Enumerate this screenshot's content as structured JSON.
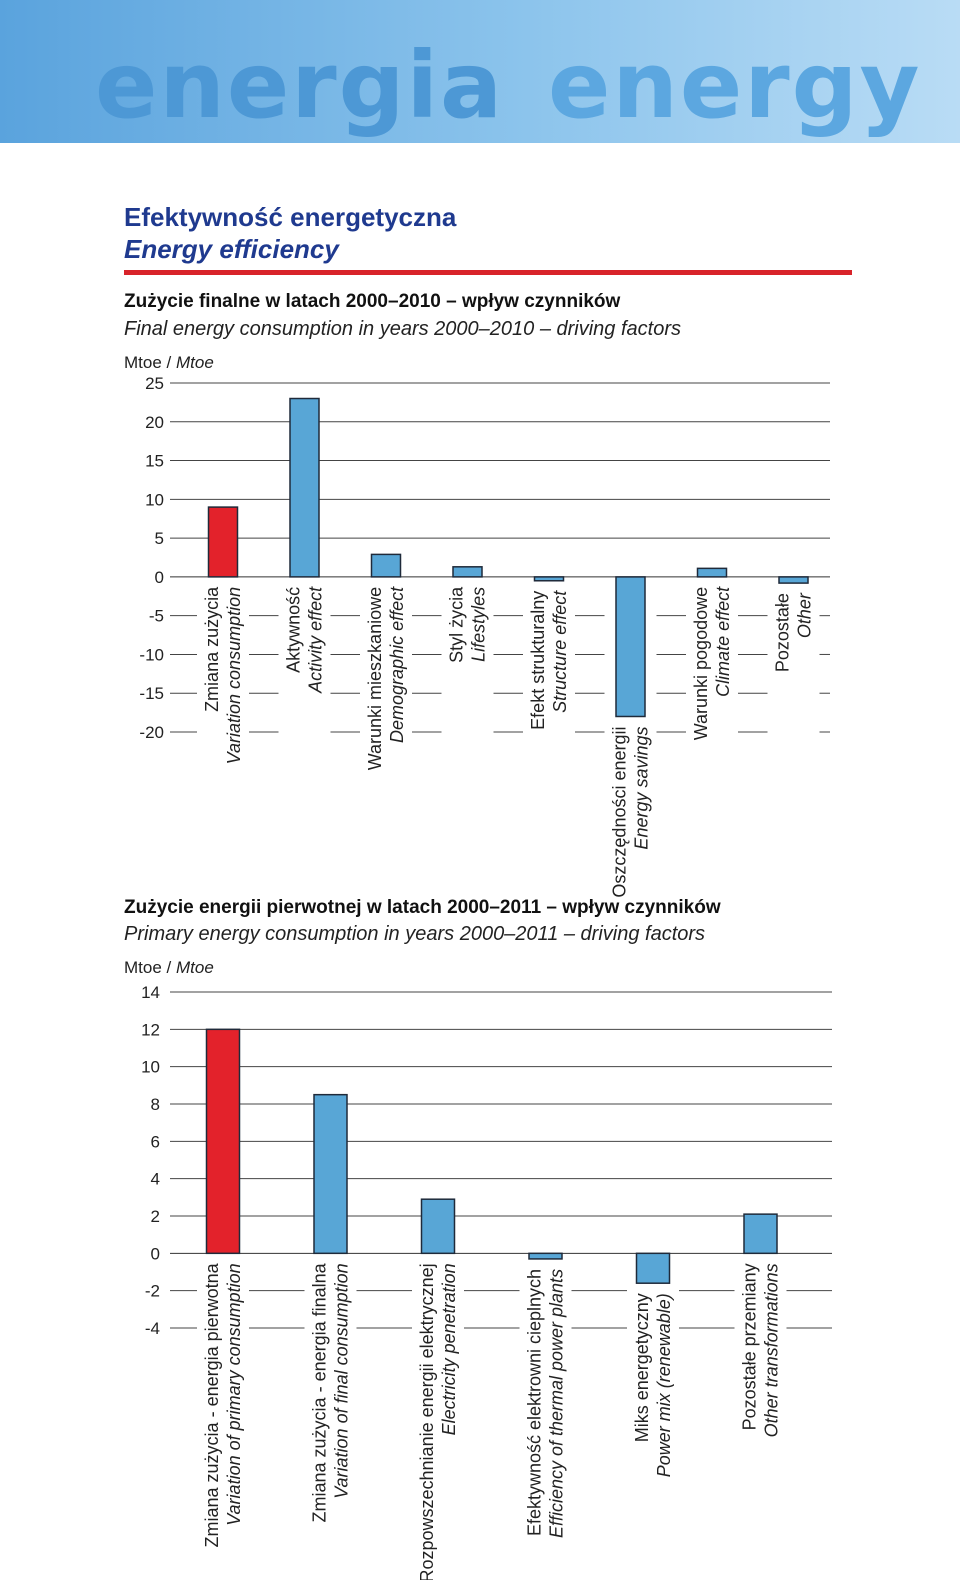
{
  "banner": {
    "word_pl": "energia",
    "word_en": "energy"
  },
  "section": {
    "title_pl": "Efektywność energetyczna",
    "title_en": "Energy efficiency"
  },
  "chart_data": [
    {
      "type": "bar",
      "title_pl": "Zużycie finalne w latach 2000–2010 – wpływ czynników",
      "title_en": "Final energy consumption in years 2000–2010 – driving factors",
      "unit_pl": "Mtoe /",
      "unit_en": "Mtoe",
      "ylim": [
        -20,
        25
      ],
      "yticks": [
        25,
        20,
        15,
        10,
        5,
        0,
        -5,
        -10,
        -15,
        -20
      ],
      "grid": true,
      "categories": [
        {
          "label_pl": "Zmiana zużycia",
          "label_en": "Variation consumption",
          "value": 9.0,
          "color": "#e3222b"
        },
        {
          "label_pl": "Aktywność",
          "label_en": "Activity effect",
          "value": 23.0,
          "color": "#58a6d6"
        },
        {
          "label_pl": "Warunki mieszkaniowe",
          "label_en": "Demographic effect",
          "value": 2.9,
          "color": "#58a6d6"
        },
        {
          "label_pl": "Styl życia",
          "label_en": "Lifestyles",
          "value": 1.3,
          "color": "#58a6d6"
        },
        {
          "label_pl": "Efekt strukturalny",
          "label_en": "Structure effect",
          "value": -0.5,
          "color": "#58a6d6"
        },
        {
          "label_pl": "Oszczędności energii",
          "label_en": "Energy savings",
          "value": -18.0,
          "color": "#58a6d6"
        },
        {
          "label_pl": "Warunki pogodowe",
          "label_en": "Climate effect",
          "value": 1.1,
          "color": "#58a6d6"
        },
        {
          "label_pl": "Pozostałe",
          "label_en": "Other",
          "value": -0.8,
          "color": "#58a6d6"
        }
      ]
    },
    {
      "type": "bar",
      "title_pl": "Zużycie energii pierwotnej w latach 2000–2011 – wpływ czynników",
      "title_en": "Primary energy consumption in years 2000–2011 – driving factors",
      "unit_pl": "Mtoe /",
      "unit_en": "Mtoe",
      "ylim": [
        -4,
        14
      ],
      "yticks": [
        14,
        12,
        10,
        8,
        6,
        4,
        2,
        0,
        -2,
        -4
      ],
      "grid": true,
      "categories": [
        {
          "label_pl": "Zmiana zużycia - energia pierwotna",
          "label_en": "Variation of primary consumption",
          "value": 12.0,
          "color": "#e3222b"
        },
        {
          "label_pl": "Zmiana zużycia - energia finalna",
          "label_en": "Variation of final consumption",
          "value": 8.5,
          "color": "#58a6d6"
        },
        {
          "label_pl": "Rozpowszechnianie energii elektrycznej",
          "label_en": "Electricity penetration",
          "value": 2.9,
          "color": "#58a6d6"
        },
        {
          "label_pl": "Efektywność elektrowni cieplnych",
          "label_en": "Efficiency of thermal power plants",
          "value": -0.3,
          "color": "#58a6d6"
        },
        {
          "label_pl": "Miks energetyczny",
          "label_en": "Power mix (renewable)",
          "value": -1.6,
          "color": "#58a6d6"
        },
        {
          "label_pl": "Pozostałe przemiany",
          "label_en": "Other transformations",
          "value": 2.1,
          "color": "#58a6d6"
        }
      ]
    }
  ]
}
